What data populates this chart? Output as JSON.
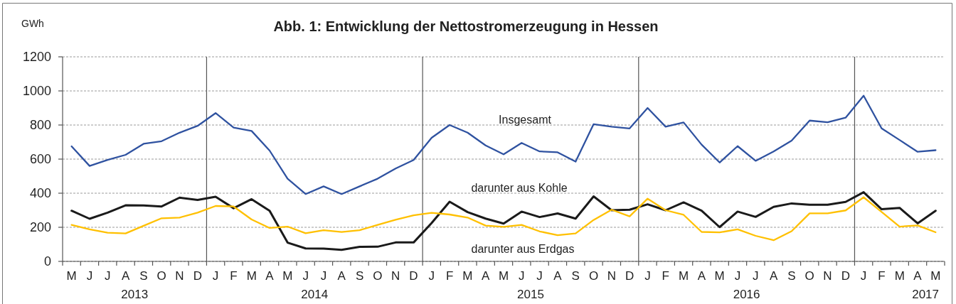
{
  "chart_data": {
    "type": "line",
    "title": "Abb. 1: Entwicklung der Nettostromerzeugung in Hessen",
    "ylabel": "GWh",
    "categories": [
      "M",
      "J",
      "J",
      "A",
      "S",
      "O",
      "N",
      "D",
      "J",
      "F",
      "M",
      "A",
      "M",
      "J",
      "J",
      "A",
      "S",
      "O",
      "N",
      "D",
      "J",
      "F",
      "M",
      "A",
      "M",
      "J",
      "J",
      "A",
      "S",
      "O",
      "N",
      "D",
      "J",
      "F",
      "M",
      "A",
      "M",
      "J",
      "J",
      "A",
      "S",
      "O",
      "N",
      "D",
      "J",
      "F",
      "M",
      "A",
      "M"
    ],
    "series": [
      {
        "name": "Insgesamt",
        "color": "#2f52a0",
        "values": [
          675,
          560,
          595,
          625,
          690,
          705,
          755,
          795,
          870,
          785,
          765,
          650,
          485,
          395,
          440,
          395,
          440,
          485,
          545,
          595,
          725,
          800,
          755,
          680,
          628,
          695,
          645,
          640,
          585,
          805,
          790,
          780,
          900,
          790,
          815,
          685,
          580,
          676,
          590,
          645,
          708,
          826,
          816,
          843,
          972,
          780,
          712,
          643,
          652
        ]
      },
      {
        "name": "darunter aus Kohle",
        "color": "#1a1a1a",
        "values": [
          297,
          250,
          286,
          329,
          328,
          322,
          374,
          360,
          379,
          312,
          365,
          297,
          110,
          76,
          75,
          68,
          85,
          86,
          111,
          111,
          225,
          350,
          289,
          251,
          222,
          292,
          260,
          281,
          251,
          381,
          300,
          303,
          335,
          300,
          346,
          297,
          201,
          292,
          261,
          320,
          340,
          332,
          332,
          349,
          406,
          306,
          314,
          223,
          297
        ]
      },
      {
        "name": "darunter aus Erdgas",
        "color": "#ffc000",
        "values": [
          214,
          188,
          168,
          164,
          209,
          253,
          257,
          286,
          325,
          322,
          246,
          196,
          204,
          165,
          183,
          172,
          183,
          214,
          244,
          270,
          285,
          275,
          257,
          210,
          203,
          214,
          176,
          154,
          164,
          243,
          303,
          264,
          368,
          300,
          273,
          173,
          170,
          188,
          150,
          124,
          177,
          282,
          282,
          299,
          376,
          290,
          204,
          211,
          171
        ]
      }
    ],
    "ylim": [
      0,
      1200
    ],
    "yticks": [
      0,
      200,
      400,
      600,
      800,
      1000,
      1200
    ],
    "grid": "y",
    "annotations": [
      "2013",
      "2014",
      "2015",
      "2016",
      "2017"
    ]
  }
}
